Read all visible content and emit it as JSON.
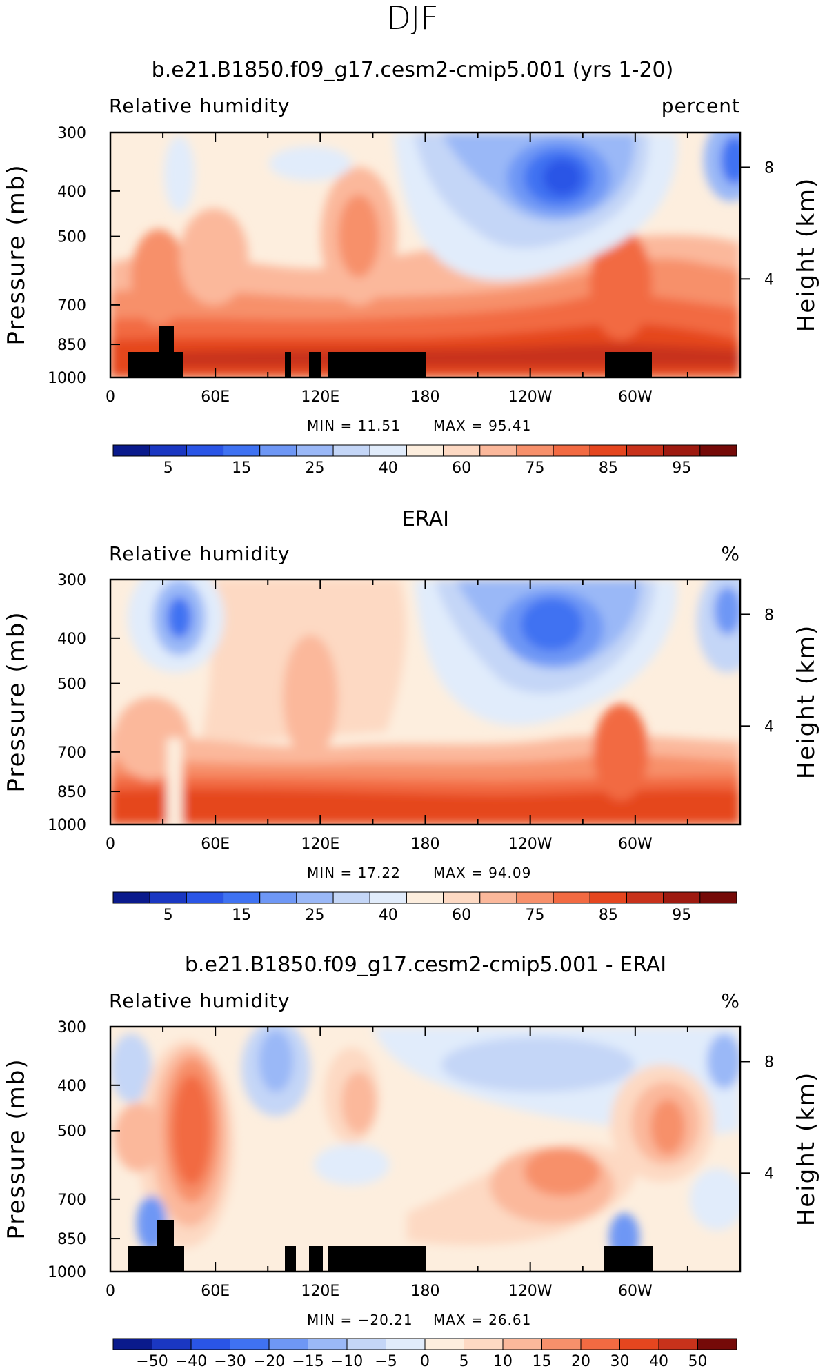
{
  "figure": {
    "super_title": "DJF",
    "ylabel_left": "Pressure (mb)",
    "ylabel_right": "Height (km)",
    "x_tick_labels": [
      "0",
      "60E",
      "120E",
      "180",
      "120W",
      "60W"
    ],
    "p_tick_labels": [
      "300",
      "400",
      "500",
      "700",
      "850",
      "1000"
    ],
    "height_tick_labels": [
      "8",
      "4"
    ],
    "land_color": "#000000"
  },
  "chart_data": [
    {
      "type": "heatmap",
      "title": "b.e21.B1850.f09_g17.cesm2-cmip5.001 (yrs 1-20)",
      "variable": "Relative humidity",
      "units": "percent",
      "min_label": "MIN =   11.51",
      "max_label": "MAX =   95.41",
      "min": 11.51,
      "max": 95.41,
      "xlim": [
        0,
        360
      ],
      "plim": [
        1000,
        300
      ],
      "colorbar": {
        "labels": [
          "5",
          "15",
          "25",
          "40",
          "60",
          "75",
          "85",
          "95"
        ],
        "colors": [
          "#0a1a8c",
          "#1a37c2",
          "#2a55e6",
          "#3f72f2",
          "#6e97f5",
          "#9ab8f7",
          "#c4d6f7",
          "#e1ecfb",
          "#fdeede",
          "#fdd9c3",
          "#fbb89b",
          "#f7906b",
          "#f26a42",
          "#e5461f",
          "#c8321b",
          "#9e1a10",
          "#750a08"
        ]
      }
    },
    {
      "type": "heatmap",
      "title": "ERAI",
      "variable": "Relative humidity",
      "units": "%",
      "min_label": "MIN =   17.22",
      "max_label": "MAX =   94.09",
      "min": 17.22,
      "max": 94.09,
      "xlim": [
        0,
        360
      ],
      "plim": [
        1000,
        300
      ],
      "colorbar": {
        "labels": [
          "5",
          "15",
          "25",
          "40",
          "60",
          "75",
          "85",
          "95"
        ],
        "colors": [
          "#0a1a8c",
          "#1a37c2",
          "#2a55e6",
          "#3f72f2",
          "#6e97f5",
          "#9ab8f7",
          "#c4d6f7",
          "#e1ecfb",
          "#fdeede",
          "#fdd9c3",
          "#fbb89b",
          "#f7906b",
          "#f26a42",
          "#e5461f",
          "#c8321b",
          "#9e1a10",
          "#750a08"
        ]
      }
    },
    {
      "type": "heatmap",
      "title": "b.e21.B1850.f09_g17.cesm2-cmip5.001 - ERAI",
      "variable": "Relative humidity",
      "units": "%",
      "min_label": "MIN = −20.21",
      "max_label": "MAX =   26.61",
      "min": -20.21,
      "max": 26.61,
      "xlim": [
        0,
        360
      ],
      "plim": [
        1000,
        300
      ],
      "colorbar": {
        "labels": [
          "−50",
          "−40",
          "−30",
          "−20",
          "−15",
          "−10",
          "−5",
          "0",
          "5",
          "10",
          "15",
          "20",
          "30",
          "40",
          "50"
        ],
        "colors": [
          "#0a1a8c",
          "#1a37c2",
          "#2a55e6",
          "#3f72f2",
          "#6e97f5",
          "#9ab8f7",
          "#c4d6f7",
          "#e1ecfb",
          "#fdeede",
          "#fdd9c3",
          "#fbb89b",
          "#f7906b",
          "#f26a42",
          "#e5461f",
          "#c8321b",
          "#750a08"
        ]
      }
    }
  ]
}
